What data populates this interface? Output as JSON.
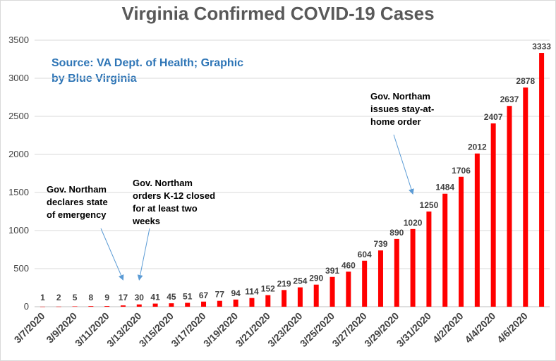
{
  "chart_data": {
    "type": "bar",
    "title": "Virginia Confirmed COVID-19 Cases",
    "source_note_lines": [
      "Source: VA Dept. of Health; Graphic",
      "by Blue Virginia"
    ],
    "xlabel": "",
    "ylabel": "",
    "ylim": [
      0,
      3500
    ],
    "yticks": [
      0,
      500,
      1000,
      1500,
      2000,
      2500,
      3000,
      3500
    ],
    "grid": true,
    "legend": "none",
    "bar_color": "#ff0000",
    "categories": [
      "3/7/2020",
      "3/8/2020",
      "3/9/2020",
      "3/10/2020",
      "3/11/2020",
      "3/12/2020",
      "3/13/2020",
      "3/14/2020",
      "3/15/2020",
      "3/16/2020",
      "3/17/2020",
      "3/18/2020",
      "3/19/2020",
      "3/20/2020",
      "3/21/2020",
      "3/22/2020",
      "3/23/2020",
      "3/24/2020",
      "3/25/2020",
      "3/26/2020",
      "3/27/2020",
      "3/28/2020",
      "3/29/2020",
      "3/30/2020",
      "3/31/2020",
      "4/1/2020",
      "4/2/2020",
      "4/3/2020",
      "4/4/2020",
      "4/5/2020",
      "4/6/2020",
      "4/7/2020"
    ],
    "xtick_labels": [
      "3/7/2020",
      "",
      "3/9/2020",
      "",
      "3/11/2020",
      "",
      "3/13/2020",
      "",
      "3/15/2020",
      "",
      "3/17/2020",
      "",
      "3/19/2020",
      "",
      "3/21/2020",
      "",
      "3/23/2020",
      "",
      "3/25/2020",
      "",
      "3/27/2020",
      "",
      "3/29/2020",
      "",
      "3/31/2020",
      "",
      "4/2/2020",
      "",
      "4/4/2020",
      "",
      "4/6/2020",
      ""
    ],
    "values": [
      1,
      2,
      5,
      8,
      9,
      17,
      30,
      41,
      45,
      51,
      67,
      77,
      94,
      114,
      152,
      219,
      254,
      290,
      391,
      460,
      604,
      739,
      890,
      1020,
      1250,
      1484,
      1706,
      2012,
      2407,
      2637,
      2878,
      3333
    ],
    "annotations": [
      {
        "lines": [
          "Gov. Northam",
          "declares state",
          "of emergency"
        ],
        "points_to": "3/12/2020"
      },
      {
        "lines": [
          "Gov. Northam",
          "orders K-12 closed",
          "for at least two",
          "weeks"
        ],
        "points_to": "3/13/2020"
      },
      {
        "lines": [
          "Gov. Northam",
          "issues stay-at-",
          "home order"
        ],
        "points_to": "3/30/2020"
      }
    ]
  },
  "colors": {
    "title": "#595959",
    "source": "#2e75b6",
    "axis_text": "#404040",
    "grid": "#d9d9d9",
    "arrow": "#5b9bd5"
  }
}
